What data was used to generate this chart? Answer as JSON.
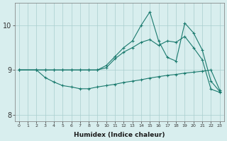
{
  "xlabel": "Humidex (Indice chaleur)",
  "bg_color": "#d8eeee",
  "line_color": "#1a7a6e",
  "grid_color": "#aacece",
  "xlim": [
    -0.5,
    23.5
  ],
  "ylim": [
    7.85,
    10.5
  ],
  "xticks": [
    0,
    1,
    2,
    3,
    4,
    5,
    6,
    7,
    8,
    9,
    10,
    11,
    12,
    13,
    14,
    15,
    16,
    17,
    18,
    19,
    20,
    21,
    22,
    23
  ],
  "yticks": [
    8,
    9,
    10
  ],
  "line1_x": [
    0,
    2,
    3,
    4,
    5,
    6,
    7,
    8,
    9,
    10,
    11,
    12,
    13,
    14,
    15,
    16,
    17,
    18,
    19,
    20,
    21,
    22,
    23
  ],
  "line1_y": [
    9.0,
    9.0,
    9.0,
    9.0,
    9.0,
    9.0,
    9.0,
    9.0,
    9.0,
    9.1,
    9.3,
    9.5,
    9.65,
    10.0,
    10.3,
    9.65,
    9.28,
    9.2,
    10.05,
    9.83,
    9.45,
    8.75,
    8.52
  ],
  "line2_x": [
    0,
    2,
    3,
    4,
    5,
    6,
    7,
    8,
    9,
    10,
    11,
    12,
    13,
    14,
    15,
    16,
    17,
    18,
    19,
    20,
    21,
    22,
    23
  ],
  "line2_y": [
    9.0,
    9.0,
    9.0,
    9.0,
    9.0,
    9.0,
    9.0,
    9.0,
    9.0,
    9.05,
    9.25,
    9.4,
    9.5,
    9.62,
    9.68,
    9.55,
    9.65,
    9.62,
    9.75,
    9.5,
    9.23,
    8.57,
    8.5
  ],
  "line3_x": [
    0,
    2,
    3,
    4,
    5,
    6,
    7,
    8,
    9,
    10,
    11,
    12,
    13,
    14,
    15,
    16,
    17,
    18,
    19,
    20,
    21,
    22,
    23
  ],
  "line3_y": [
    9.0,
    9.0,
    8.83,
    8.73,
    8.65,
    8.62,
    8.58,
    8.58,
    8.62,
    8.65,
    8.68,
    8.72,
    8.75,
    8.78,
    8.82,
    8.85,
    8.88,
    8.9,
    8.93,
    8.95,
    8.97,
    9.0,
    8.55
  ]
}
